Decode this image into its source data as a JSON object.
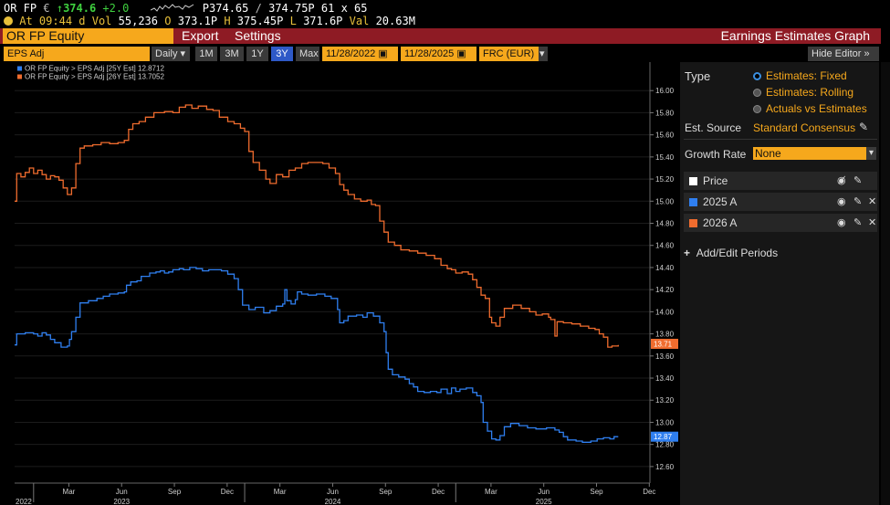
{
  "quote": {
    "ticker": "OR FP",
    "currency": "€",
    "arrow": "↑",
    "last": "374.6",
    "change": "+2.0",
    "bid": "P374.65",
    "ask": "374.75P",
    "size": "61 x 65",
    "time_label": "At",
    "time": "09:44 d",
    "vol_label": "Vol",
    "vol": "55,236",
    "open_label": "O",
    "open": "373.1P",
    "high_label": "H",
    "high": "375.45P",
    "low_label": "L",
    "low": "371.6P",
    "val_label": "Val",
    "val": "20.63M"
  },
  "fnbar": {
    "security": "OR FP Equity",
    "export": "Export",
    "settings": "Settings",
    "title": "Earnings Estimates Graph"
  },
  "controls": {
    "field": "EPS Adj",
    "period": "Daily",
    "ranges": [
      "1M",
      "3M",
      "1Y",
      "3Y",
      "Max"
    ],
    "active_range": "3Y",
    "start": "11/28/2022",
    "end": "11/28/2025",
    "source": "FRC (EUR)",
    "hide_editor": "Hide Editor",
    "editor_arrows": "»"
  },
  "panel": {
    "type_label": "Type",
    "type_options": [
      "Estimates: Fixed",
      "Estimates: Rolling",
      "Actuals vs Estimates"
    ],
    "type_selected": 0,
    "est_source_label": "Est. Source",
    "est_source": "Standard Consensus",
    "growth_label": "Growth Rate",
    "growth": "None",
    "series_rows": [
      {
        "label": "Price",
        "color": "#ffffff"
      },
      {
        "label": "2025 A",
        "color": "#2f7ff0"
      },
      {
        "label": "2026 A",
        "color": "#f06c2e"
      }
    ],
    "add_periods": "Add/Edit Periods"
  },
  "chart_data": {
    "type": "line",
    "legend": [
      {
        "label": "OR FP Equity > EPS Adj [25Y Est]",
        "value": "12.8712",
        "color": "#2f7ff0"
      },
      {
        "label": "OR FP Equity > EPS Adj [26Y Est]",
        "value": "13.7052",
        "color": "#f06c2e"
      }
    ],
    "ylim": [
      12.5,
      16.2
    ],
    "yticks": [
      "12.60",
      "12.80",
      "13.00",
      "13.20",
      "13.40",
      "13.60",
      "13.80",
      "14.00",
      "14.20",
      "14.40",
      "14.60",
      "14.80",
      "15.00",
      "15.20",
      "15.40",
      "15.60",
      "15.80",
      "16.00"
    ],
    "xlim": [
      2022.91,
      2025.92
    ],
    "month_ticks": [
      {
        "t": 2023.167,
        "label": "Mar"
      },
      {
        "t": 2023.417,
        "label": "Jun"
      },
      {
        "t": 2023.667,
        "label": "Sep"
      },
      {
        "t": 2023.917,
        "label": "Dec"
      },
      {
        "t": 2024.167,
        "label": "Mar"
      },
      {
        "t": 2024.417,
        "label": "Jun"
      },
      {
        "t": 2024.667,
        "label": "Sep"
      },
      {
        "t": 2024.917,
        "label": "Dec"
      },
      {
        "t": 2025.167,
        "label": "Mar"
      },
      {
        "t": 2025.417,
        "label": "Jun"
      },
      {
        "t": 2025.667,
        "label": "Sep"
      },
      {
        "t": 2025.917,
        "label": "Dec"
      }
    ],
    "year_labels": [
      {
        "t": 2022.91,
        "label": "2022"
      },
      {
        "t": 2023.417,
        "label": "2023"
      },
      {
        "t": 2024.417,
        "label": "2024"
      },
      {
        "t": 2025.417,
        "label": "2025"
      }
    ],
    "year_breaks": [
      2023.0,
      2024.0,
      2025.0
    ],
    "last_labels": [
      {
        "series": 1,
        "value": 13.71,
        "text": "13.71"
      },
      {
        "series": 0,
        "value": 12.87,
        "text": "12.87"
      }
    ],
    "series": [
      {
        "color": "#2f7ff0",
        "points": [
          [
            2022.91,
            13.7
          ],
          [
            2022.92,
            13.8
          ],
          [
            2022.96,
            13.81
          ],
          [
            2023.0,
            13.8
          ],
          [
            2023.02,
            13.78
          ],
          [
            2023.04,
            13.81
          ],
          [
            2023.06,
            13.79
          ],
          [
            2023.08,
            13.75
          ],
          [
            2023.1,
            13.72
          ],
          [
            2023.13,
            13.68
          ],
          [
            2023.16,
            13.69
          ],
          [
            2023.17,
            13.75
          ],
          [
            2023.18,
            13.82
          ],
          [
            2023.2,
            13.95
          ],
          [
            2023.22,
            14.08
          ],
          [
            2023.26,
            14.1
          ],
          [
            2023.3,
            14.12
          ],
          [
            2023.33,
            14.14
          ],
          [
            2023.36,
            14.16
          ],
          [
            2023.4,
            14.17
          ],
          [
            2023.43,
            14.18
          ],
          [
            2023.44,
            14.24
          ],
          [
            2023.46,
            14.27
          ],
          [
            2023.49,
            14.28
          ],
          [
            2023.51,
            14.32
          ],
          [
            2023.55,
            14.35
          ],
          [
            2023.58,
            14.36
          ],
          [
            2023.6,
            14.37
          ],
          [
            2023.62,
            14.35
          ],
          [
            2023.64,
            14.36
          ],
          [
            2023.66,
            14.38
          ],
          [
            2023.69,
            14.39
          ],
          [
            2023.71,
            14.38
          ],
          [
            2023.74,
            14.4
          ],
          [
            2023.77,
            14.39
          ],
          [
            2023.8,
            14.37
          ],
          [
            2023.83,
            14.38
          ],
          [
            2023.86,
            14.38
          ],
          [
            2023.89,
            14.37
          ],
          [
            2023.92,
            14.34
          ],
          [
            2023.95,
            14.3
          ],
          [
            2023.97,
            14.2
          ],
          [
            2023.99,
            14.06
          ],
          [
            2024.02,
            14.02
          ],
          [
            2024.05,
            14.04
          ],
          [
            2024.09,
            13.99
          ],
          [
            2024.12,
            14.01
          ],
          [
            2024.15,
            14.05
          ],
          [
            2024.18,
            14.07
          ],
          [
            2024.19,
            14.2
          ],
          [
            2024.2,
            14.1
          ],
          [
            2024.22,
            14.07
          ],
          [
            2024.24,
            14.11
          ],
          [
            2024.25,
            14.18
          ],
          [
            2024.27,
            14.16
          ],
          [
            2024.3,
            14.15
          ],
          [
            2024.34,
            14.16
          ],
          [
            2024.38,
            14.14
          ],
          [
            2024.41,
            14.12
          ],
          [
            2024.44,
            14.02
          ],
          [
            2024.45,
            13.9
          ],
          [
            2024.47,
            13.92
          ],
          [
            2024.49,
            13.96
          ],
          [
            2024.53,
            13.97
          ],
          [
            2024.56,
            13.95
          ],
          [
            2024.58,
            13.99
          ],
          [
            2024.61,
            13.96
          ],
          [
            2024.64,
            13.9
          ],
          [
            2024.66,
            13.82
          ],
          [
            2024.67,
            13.63
          ],
          [
            2024.68,
            13.48
          ],
          [
            2024.7,
            13.43
          ],
          [
            2024.73,
            13.41
          ],
          [
            2024.76,
            13.39
          ],
          [
            2024.78,
            13.35
          ],
          [
            2024.8,
            13.32
          ],
          [
            2024.82,
            13.28
          ],
          [
            2024.85,
            13.27
          ],
          [
            2024.88,
            13.28
          ],
          [
            2024.91,
            13.27
          ],
          [
            2024.93,
            13.3
          ],
          [
            2024.96,
            13.26
          ],
          [
            2024.98,
            13.31
          ],
          [
            2025.0,
            13.28
          ],
          [
            2025.02,
            13.3
          ],
          [
            2025.05,
            13.31
          ],
          [
            2025.08,
            13.27
          ],
          [
            2025.1,
            13.24
          ],
          [
            2025.12,
            13.18
          ],
          [
            2025.13,
            13.0
          ],
          [
            2025.15,
            12.92
          ],
          [
            2025.17,
            12.85
          ],
          [
            2025.19,
            12.84
          ],
          [
            2025.21,
            12.88
          ],
          [
            2025.23,
            12.96
          ],
          [
            2025.26,
            12.99
          ],
          [
            2025.3,
            12.97
          ],
          [
            2025.34,
            12.95
          ],
          [
            2025.38,
            12.94
          ],
          [
            2025.43,
            12.95
          ],
          [
            2025.47,
            12.93
          ],
          [
            2025.49,
            12.91
          ],
          [
            2025.51,
            12.87
          ],
          [
            2025.53,
            12.84
          ],
          [
            2025.57,
            12.83
          ],
          [
            2025.6,
            12.82
          ],
          [
            2025.64,
            12.83
          ],
          [
            2025.67,
            12.85
          ],
          [
            2025.7,
            12.86
          ],
          [
            2025.73,
            12.85
          ],
          [
            2025.75,
            12.87
          ],
          [
            2025.77,
            12.87
          ]
        ]
      },
      {
        "color": "#f06c2e",
        "points": [
          [
            2022.91,
            15.0
          ],
          [
            2022.92,
            15.25
          ],
          [
            2022.94,
            15.22
          ],
          [
            2022.96,
            15.26
          ],
          [
            2022.98,
            15.3
          ],
          [
            2023.0,
            15.25
          ],
          [
            2023.02,
            15.28
          ],
          [
            2023.04,
            15.24
          ],
          [
            2023.06,
            15.2
          ],
          [
            2023.08,
            15.23
          ],
          [
            2023.1,
            15.22
          ],
          [
            2023.12,
            15.19
          ],
          [
            2023.14,
            15.12
          ],
          [
            2023.16,
            15.06
          ],
          [
            2023.18,
            15.12
          ],
          [
            2023.2,
            15.34
          ],
          [
            2023.22,
            15.48
          ],
          [
            2023.24,
            15.5
          ],
          [
            2023.28,
            15.51
          ],
          [
            2023.32,
            15.53
          ],
          [
            2023.36,
            15.52
          ],
          [
            2023.4,
            15.53
          ],
          [
            2023.43,
            15.55
          ],
          [
            2023.45,
            15.65
          ],
          [
            2023.47,
            15.7
          ],
          [
            2023.5,
            15.72
          ],
          [
            2023.53,
            15.76
          ],
          [
            2023.57,
            15.8
          ],
          [
            2023.62,
            15.81
          ],
          [
            2023.66,
            15.8
          ],
          [
            2023.69,
            15.85
          ],
          [
            2023.72,
            15.87
          ],
          [
            2023.75,
            15.84
          ],
          [
            2023.78,
            15.86
          ],
          [
            2023.82,
            15.83
          ],
          [
            2023.85,
            15.82
          ],
          [
            2023.88,
            15.76
          ],
          [
            2023.92,
            15.72
          ],
          [
            2023.95,
            15.7
          ],
          [
            2023.98,
            15.66
          ],
          [
            2024.0,
            15.63
          ],
          [
            2024.02,
            15.45
          ],
          [
            2024.04,
            15.35
          ],
          [
            2024.07,
            15.28
          ],
          [
            2024.1,
            15.2
          ],
          [
            2024.12,
            15.16
          ],
          [
            2024.15,
            15.24
          ],
          [
            2024.18,
            15.22
          ],
          [
            2024.21,
            15.28
          ],
          [
            2024.24,
            15.3
          ],
          [
            2024.27,
            15.34
          ],
          [
            2024.3,
            15.35
          ],
          [
            2024.34,
            15.35
          ],
          [
            2024.37,
            15.34
          ],
          [
            2024.4,
            15.3
          ],
          [
            2024.43,
            15.25
          ],
          [
            2024.45,
            15.15
          ],
          [
            2024.47,
            15.1
          ],
          [
            2024.49,
            15.06
          ],
          [
            2024.52,
            15.02
          ],
          [
            2024.55,
            15.0
          ],
          [
            2024.58,
            15.01
          ],
          [
            2024.6,
            14.97
          ],
          [
            2024.62,
            14.96
          ],
          [
            2024.64,
            14.82
          ],
          [
            2024.66,
            14.72
          ],
          [
            2024.68,
            14.63
          ],
          [
            2024.71,
            14.6
          ],
          [
            2024.74,
            14.56
          ],
          [
            2024.78,
            14.55
          ],
          [
            2024.82,
            14.53
          ],
          [
            2024.86,
            14.51
          ],
          [
            2024.9,
            14.48
          ],
          [
            2024.93,
            14.42
          ],
          [
            2024.96,
            14.39
          ],
          [
            2024.98,
            14.38
          ],
          [
            2025.0,
            14.35
          ],
          [
            2025.03,
            14.36
          ],
          [
            2025.06,
            14.34
          ],
          [
            2025.08,
            14.29
          ],
          [
            2025.1,
            14.22
          ],
          [
            2025.12,
            14.15
          ],
          [
            2025.14,
            14.12
          ],
          [
            2025.16,
            13.95
          ],
          [
            2025.17,
            13.9
          ],
          [
            2025.19,
            13.87
          ],
          [
            2025.21,
            13.95
          ],
          [
            2025.23,
            14.03
          ],
          [
            2025.27,
            14.06
          ],
          [
            2025.31,
            14.03
          ],
          [
            2025.35,
            14.0
          ],
          [
            2025.38,
            13.97
          ],
          [
            2025.41,
            13.98
          ],
          [
            2025.44,
            13.95
          ],
          [
            2025.45,
            13.93
          ],
          [
            2025.47,
            13.78
          ],
          [
            2025.48,
            13.91
          ],
          [
            2025.51,
            13.9
          ],
          [
            2025.55,
            13.89
          ],
          [
            2025.59,
            13.87
          ],
          [
            2025.63,
            13.85
          ],
          [
            2025.66,
            13.84
          ],
          [
            2025.68,
            13.8
          ],
          [
            2025.7,
            13.77
          ],
          [
            2025.72,
            13.68
          ],
          [
            2025.74,
            13.69
          ],
          [
            2025.77,
            13.7
          ]
        ]
      }
    ]
  }
}
